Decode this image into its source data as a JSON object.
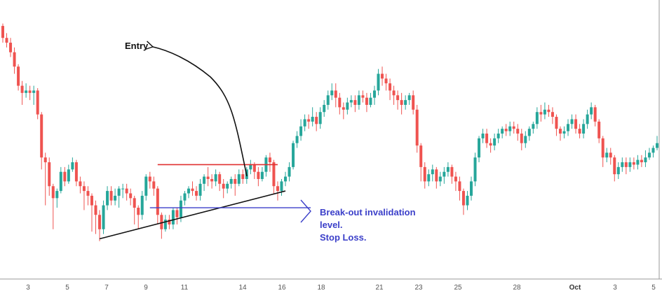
{
  "annotations": {
    "entry_label": "Entry",
    "stop_loss_lines": [
      "Break-out invalidation",
      "level.",
      "Stop Loss."
    ]
  },
  "colors": {
    "up": "#26a69a",
    "down": "#ef5350",
    "resistance_line": "#e03030",
    "support_line": "#111111",
    "stop_loss": "#3b3fc9",
    "axis": "#999999"
  },
  "chart_data": {
    "type": "candlestick",
    "title": "",
    "xlabel": "",
    "ylabel": "",
    "grid": false,
    "legend": "none",
    "x_tick_labels": [
      "3",
      "5",
      "7",
      "9",
      "11",
      "14",
      "16",
      "18",
      "21",
      "23",
      "25",
      "28",
      "Oct",
      "3",
      "5"
    ],
    "ylim": [
      0,
      100
    ],
    "candles": [
      [
        95,
        90,
        96,
        88
      ],
      [
        90,
        88,
        92,
        86
      ],
      [
        88,
        84,
        90,
        82
      ],
      [
        84,
        78,
        86,
        75
      ],
      [
        78,
        70,
        79,
        68
      ],
      [
        70,
        67,
        72,
        62
      ],
      [
        67,
        68,
        71,
        65
      ],
      [
        68,
        67,
        70,
        64
      ],
      [
        67,
        68,
        70,
        62
      ],
      [
        68,
        58,
        69,
        56
      ],
      [
        58,
        40,
        59,
        35
      ],
      [
        40,
        38,
        42,
        20
      ],
      [
        38,
        28,
        40,
        24
      ],
      [
        28,
        23,
        29,
        10
      ],
      [
        23,
        26,
        27,
        19
      ],
      [
        26,
        34,
        36,
        25
      ],
      [
        34,
        30,
        36,
        28
      ],
      [
        30,
        35,
        37,
        29
      ],
      [
        35,
        38,
        40,
        34
      ],
      [
        38,
        30,
        39,
        28
      ],
      [
        30,
        28,
        32,
        25
      ],
      [
        28,
        26,
        30,
        18
      ],
      [
        26,
        24,
        28,
        20
      ],
      [
        24,
        20,
        25,
        9
      ],
      [
        20,
        16,
        22,
        8
      ],
      [
        16,
        10,
        18,
        5
      ],
      [
        10,
        20,
        22,
        8
      ],
      [
        20,
        26,
        28,
        18
      ],
      [
        26,
        22,
        28,
        20
      ],
      [
        22,
        24,
        27,
        20
      ],
      [
        24,
        27,
        28,
        19
      ],
      [
        27,
        27,
        29,
        23
      ],
      [
        27,
        25,
        29,
        22
      ],
      [
        25,
        23,
        27,
        20
      ],
      [
        23,
        19,
        24,
        12
      ],
      [
        19,
        16,
        20,
        10
      ],
      [
        16,
        24,
        26,
        14
      ],
      [
        24,
        32,
        33,
        22
      ],
      [
        32,
        30,
        34,
        27
      ],
      [
        30,
        27,
        32,
        24
      ],
      [
        27,
        16,
        28,
        12
      ],
      [
        16,
        10,
        17,
        6
      ],
      [
        10,
        14,
        16,
        9
      ],
      [
        14,
        12,
        16,
        10
      ],
      [
        12,
        18,
        19,
        10
      ],
      [
        18,
        15,
        19,
        12
      ],
      [
        15,
        22,
        24,
        13
      ],
      [
        22,
        25,
        26,
        20
      ],
      [
        25,
        27,
        28,
        23
      ],
      [
        27,
        26,
        30,
        24
      ],
      [
        26,
        24,
        28,
        22
      ],
      [
        24,
        29,
        31,
        22
      ],
      [
        29,
        32,
        33,
        26
      ],
      [
        32,
        31,
        36,
        28
      ],
      [
        31,
        30,
        33,
        27
      ],
      [
        30,
        33,
        35,
        28
      ],
      [
        33,
        29,
        34,
        26
      ],
      [
        29,
        27,
        31,
        23
      ],
      [
        27,
        29,
        30,
        25
      ],
      [
        29,
        31,
        32,
        27
      ],
      [
        31,
        29,
        33,
        24
      ],
      [
        29,
        33,
        35,
        28
      ],
      [
        33,
        31,
        35,
        29
      ],
      [
        31,
        35,
        36,
        29
      ],
      [
        35,
        37,
        39,
        33
      ],
      [
        37,
        34,
        38,
        31
      ],
      [
        34,
        31,
        36,
        28
      ],
      [
        31,
        34,
        36,
        30
      ],
      [
        34,
        40,
        41,
        32
      ],
      [
        40,
        38,
        42,
        34
      ],
      [
        38,
        28,
        39,
        25
      ],
      [
        28,
        26,
        30,
        22
      ],
      [
        26,
        30,
        31,
        24
      ],
      [
        30,
        32,
        34,
        28
      ],
      [
        32,
        36,
        38,
        30
      ],
      [
        36,
        46,
        47,
        35
      ],
      [
        46,
        49,
        51,
        44
      ],
      [
        49,
        53,
        56,
        47
      ],
      [
        53,
        56,
        58,
        51
      ],
      [
        56,
        55,
        58,
        52
      ],
      [
        55,
        57,
        61,
        53
      ],
      [
        57,
        54,
        59,
        51
      ],
      [
        54,
        59,
        61,
        52
      ],
      [
        59,
        62,
        64,
        57
      ],
      [
        62,
        66,
        68,
        60
      ],
      [
        66,
        68,
        71,
        64
      ],
      [
        68,
        65,
        71,
        61
      ],
      [
        65,
        61,
        67,
        58
      ],
      [
        61,
        60,
        63,
        56
      ],
      [
        60,
        63,
        65,
        58
      ],
      [
        63,
        64,
        66,
        61
      ],
      [
        64,
        62,
        66,
        59
      ],
      [
        62,
        66,
        68,
        60
      ],
      [
        66,
        65,
        68,
        63
      ],
      [
        65,
        62,
        67,
        59
      ],
      [
        62,
        65,
        67,
        61
      ],
      [
        65,
        68,
        70,
        62
      ],
      [
        68,
        75,
        77,
        66
      ],
      [
        75,
        73,
        78,
        70
      ],
      [
        73,
        71,
        75,
        68
      ],
      [
        71,
        68,
        73,
        64
      ],
      [
        68,
        66,
        70,
        62
      ],
      [
        66,
        64,
        68,
        60
      ],
      [
        64,
        62,
        67,
        58
      ],
      [
        62,
        64,
        66,
        60
      ],
      [
        64,
        66,
        67,
        62
      ],
      [
        66,
        60,
        68,
        58
      ],
      [
        60,
        45,
        62,
        42
      ],
      [
        45,
        36,
        46,
        30
      ],
      [
        36,
        30,
        38,
        27
      ],
      [
        30,
        33,
        35,
        28
      ],
      [
        33,
        35,
        37,
        30
      ],
      [
        35,
        30,
        36,
        27
      ],
      [
        30,
        32,
        34,
        28
      ],
      [
        32,
        34,
        36,
        29
      ],
      [
        34,
        36,
        38,
        32
      ],
      [
        36,
        32,
        37,
        29
      ],
      [
        32,
        30,
        34,
        26
      ],
      [
        30,
        26,
        32,
        22
      ],
      [
        26,
        20,
        27,
        16
      ],
      [
        20,
        24,
        26,
        18
      ],
      [
        24,
        30,
        32,
        22
      ],
      [
        30,
        40,
        42,
        28
      ],
      [
        40,
        48,
        49,
        38
      ],
      [
        48,
        50,
        52,
        46
      ],
      [
        50,
        46,
        52,
        44
      ],
      [
        46,
        45,
        48,
        42
      ],
      [
        45,
        48,
        50,
        43
      ],
      [
        48,
        50,
        52,
        46
      ],
      [
        50,
        52,
        53,
        48
      ],
      [
        52,
        51,
        54,
        49
      ],
      [
        51,
        53,
        55,
        49
      ],
      [
        53,
        52,
        55,
        50
      ],
      [
        52,
        50,
        54,
        47
      ],
      [
        50,
        46,
        52,
        43
      ],
      [
        46,
        49,
        51,
        44
      ],
      [
        49,
        52,
        53,
        47
      ],
      [
        52,
        54,
        55,
        50
      ],
      [
        54,
        59,
        61,
        52
      ],
      [
        59,
        58,
        62,
        55
      ],
      [
        58,
        60,
        63,
        56
      ],
      [
        60,
        59,
        62,
        57
      ],
      [
        59,
        57,
        61,
        54
      ],
      [
        57,
        52,
        58,
        49
      ],
      [
        52,
        50,
        53,
        47
      ],
      [
        50,
        51,
        53,
        48
      ],
      [
        51,
        54,
        56,
        49
      ],
      [
        54,
        56,
        58,
        52
      ],
      [
        56,
        52,
        58,
        50
      ],
      [
        52,
        50,
        54,
        48
      ],
      [
        50,
        54,
        56,
        48
      ],
      [
        54,
        58,
        60,
        52
      ],
      [
        58,
        61,
        63,
        56
      ],
      [
        61,
        55,
        62,
        53
      ],
      [
        55,
        48,
        56,
        46
      ],
      [
        48,
        40,
        49,
        36
      ],
      [
        40,
        42,
        44,
        38
      ],
      [
        42,
        40,
        44,
        37
      ],
      [
        40,
        33,
        41,
        30
      ],
      [
        33,
        36,
        38,
        31
      ],
      [
        36,
        38,
        40,
        34
      ],
      [
        38,
        36,
        40,
        33
      ],
      [
        36,
        38,
        40,
        34
      ],
      [
        38,
        37,
        40,
        35
      ],
      [
        37,
        39,
        41,
        35
      ],
      [
        39,
        38,
        41,
        36
      ],
      [
        38,
        40,
        43,
        36
      ],
      [
        40,
        42,
        44,
        39
      ],
      [
        42,
        44,
        45,
        40
      ],
      [
        44,
        46,
        49,
        43
      ]
    ],
    "lines": {
      "resistance": {
        "from_candle": 40,
        "to_candle": 71,
        "level": 37
      },
      "support": {
        "from": [
          25,
          6
        ],
        "to": [
          73,
          26
        ]
      },
      "stop_loss": {
        "from_candle": 38,
        "to_candle": 69,
        "level": 19
      }
    }
  }
}
